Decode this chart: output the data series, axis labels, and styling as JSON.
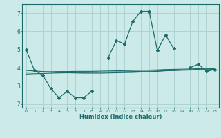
{
  "x": [
    0,
    1,
    2,
    3,
    4,
    5,
    6,
    7,
    8,
    9,
    10,
    11,
    12,
    13,
    14,
    15,
    16,
    17,
    18,
    19,
    20,
    21,
    22,
    23
  ],
  "y_main": [
    5.0,
    3.85,
    3.6,
    2.85,
    2.35,
    2.7,
    2.35,
    2.35,
    2.7,
    null,
    4.55,
    5.5,
    5.3,
    6.55,
    7.1,
    7.1,
    4.95,
    5.8,
    5.05,
    null,
    4.0,
    4.2,
    3.8,
    3.9
  ],
  "y_trend1": [
    3.85,
    3.82,
    3.79,
    3.76,
    3.73,
    3.72,
    3.71,
    3.7,
    3.7,
    3.7,
    3.71,
    3.72,
    3.73,
    3.74,
    3.76,
    3.78,
    3.8,
    3.83,
    3.85,
    3.87,
    3.89,
    3.91,
    3.93,
    3.95
  ],
  "y_trend2": [
    3.75,
    3.76,
    3.77,
    3.78,
    3.79,
    3.79,
    3.8,
    3.8,
    3.8,
    3.81,
    3.82,
    3.83,
    3.84,
    3.85,
    3.86,
    3.87,
    3.88,
    3.9,
    3.91,
    3.92,
    3.93,
    3.95,
    3.96,
    3.97
  ],
  "y_trend3": [
    3.65,
    3.67,
    3.68,
    3.7,
    3.71,
    3.72,
    3.73,
    3.73,
    3.74,
    3.75,
    3.76,
    3.77,
    3.78,
    3.79,
    3.8,
    3.81,
    3.82,
    3.84,
    3.85,
    3.86,
    3.87,
    3.88,
    3.89,
    3.91
  ],
  "background_color": "#cceae7",
  "grid_color": "#aacfcc",
  "line_color": "#1a6b6a",
  "ylabel_ticks": [
    2,
    3,
    4,
    5,
    6,
    7
  ],
  "xlabel": "Humidex (Indice chaleur)",
  "ylim": [
    1.8,
    7.5
  ],
  "xlim": [
    -0.5,
    23.5
  ]
}
